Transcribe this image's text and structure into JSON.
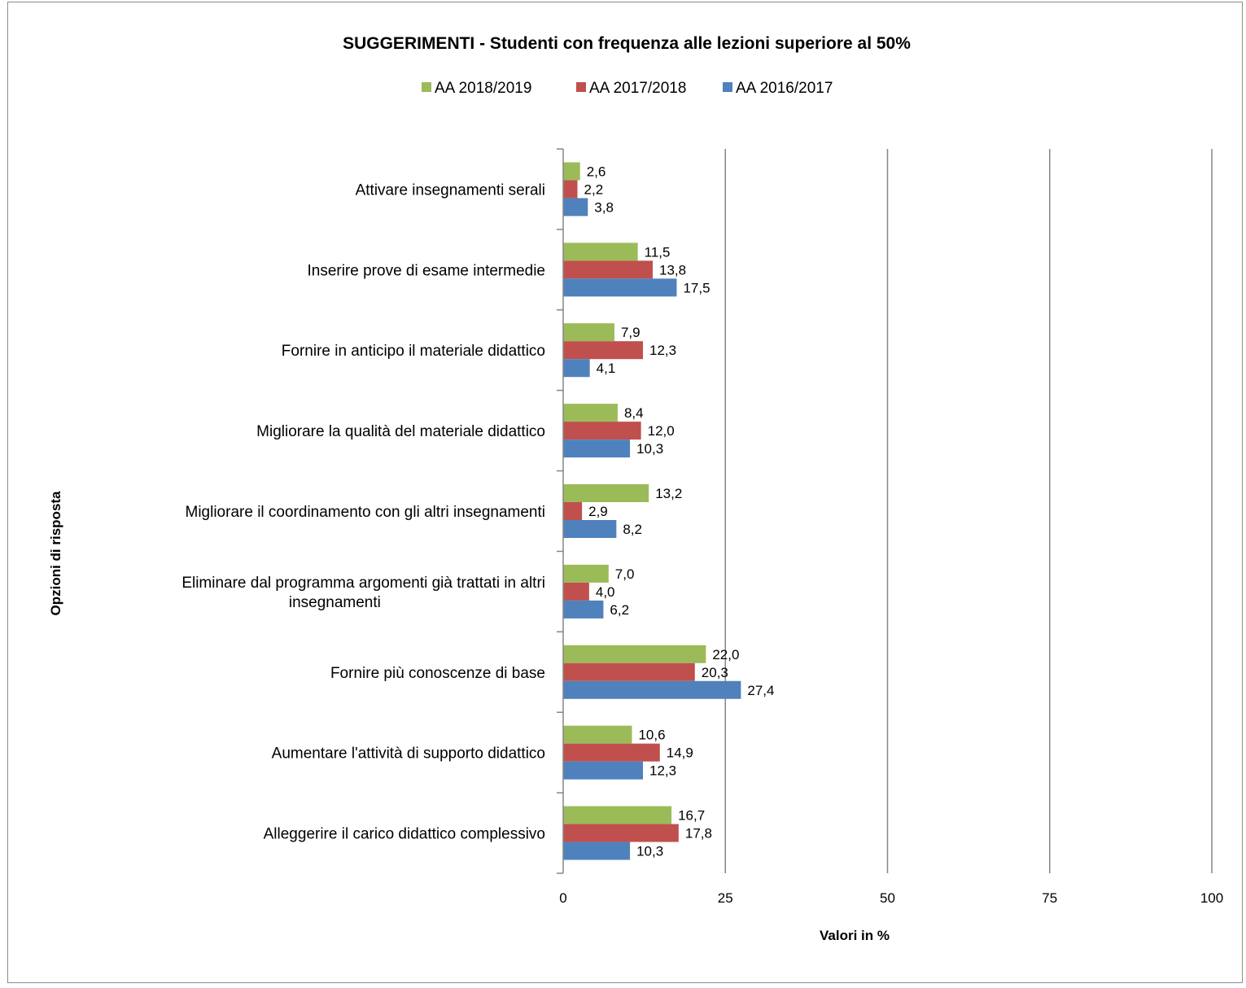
{
  "chart_data": {
    "type": "bar",
    "orientation": "horizontal",
    "title": "SUGGERIMENTI  - Studenti con frequenza alle lezioni superiore al 50%",
    "xlabel": "Valori in %",
    "ylabel": "Opzioni di risposta",
    "xlim": [
      0,
      100
    ],
    "xticks": [
      0,
      25,
      50,
      75,
      100
    ],
    "grid": "vertical",
    "legend_position": "top",
    "categories": [
      "Attivare insegnamenti serali",
      "Inserire prove di esame intermedie",
      "Fornire in anticipo il materiale didattico",
      "Migliorare la qualità del materiale didattico",
      "Migliorare il coordinamento con gli altri insegnamenti",
      "Eliminare dal programma argomenti già trattati in altri insegnamenti",
      "Fornire più conoscenze di base",
      "Aumentare l'attività di supporto didattico",
      "Alleggerire il carico didattico complessivo"
    ],
    "category_lines": [
      [
        "Attivare insegnamenti serali"
      ],
      [
        "Inserire prove di esame intermedie"
      ],
      [
        "Fornire in anticipo il materiale didattico"
      ],
      [
        "Migliorare la qualità del materiale didattico"
      ],
      [
        "Migliorare il coordinamento con gli altri insegnamenti"
      ],
      [
        "Eliminare dal programma argomenti già trattati in altri",
        "insegnamenti"
      ],
      [
        "Fornire più conoscenze di base"
      ],
      [
        "Aumentare l'attività di supporto didattico"
      ],
      [
        "Alleggerire il carico didattico complessivo"
      ]
    ],
    "series": [
      {
        "name": "AA 2018/2019",
        "color": "#9bbb59",
        "values": [
          2.6,
          11.5,
          7.9,
          8.4,
          13.2,
          7.0,
          22.0,
          10.6,
          16.7
        ],
        "labels": [
          "2,6",
          "11,5",
          "7,9",
          "8,4",
          "13,2",
          "7,0",
          "22,0",
          "10,6",
          "16,7"
        ]
      },
      {
        "name": "AA 2017/2018",
        "color": "#c0504d",
        "values": [
          2.2,
          13.8,
          12.3,
          12.0,
          2.9,
          4.0,
          20.3,
          14.9,
          17.8
        ],
        "labels": [
          "2,2",
          "13,8",
          "12,3",
          "12,0",
          "2,9",
          "4,0",
          "20,3",
          "14,9",
          "17,8"
        ]
      },
      {
        "name": "AA 2016/2017",
        "color": "#4f81bd",
        "values": [
          3.8,
          17.5,
          4.1,
          10.3,
          8.2,
          6.2,
          27.4,
          12.3,
          10.3
        ],
        "labels": [
          "3,8",
          "17,5",
          "4,1",
          "10,3",
          "8,2",
          "6,2",
          "27,4",
          "12,3",
          "10,3"
        ]
      }
    ]
  }
}
